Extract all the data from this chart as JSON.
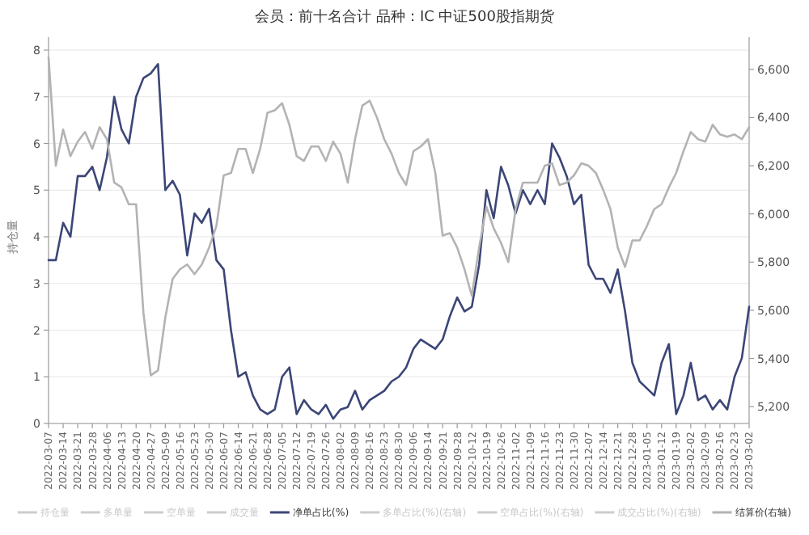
{
  "chart_data": {
    "type": "line",
    "title": "会员：前十名合计 品种：IC 中证500股指期货",
    "ylabel": "持仓量",
    "categories": [
      "2022-03-07",
      null,
      "2022-03-14",
      null,
      "2022-03-21",
      null,
      "2022-03-28",
      null,
      "2022-04-06",
      null,
      "2022-04-13",
      null,
      "2022-04-20",
      null,
      "2022-04-27",
      null,
      "2022-05-09",
      null,
      "2022-05-16",
      null,
      "2022-05-23",
      null,
      "2022-05-30",
      null,
      "2022-06-07",
      null,
      "2022-06-14",
      null,
      "2022-06-21",
      null,
      "2022-06-28",
      null,
      "2022-07-05",
      null,
      "2022-07-12",
      null,
      "2022-07-19",
      null,
      "2022-07-26",
      null,
      "2022-08-02",
      null,
      "2022-08-09",
      null,
      "2022-08-16",
      null,
      "2022-08-23",
      null,
      "2022-08-30",
      null,
      "2022-09-06",
      null,
      "2022-09-14",
      null,
      "2022-09-21",
      null,
      "2022-09-28",
      null,
      "2022-10-12",
      null,
      "2022-10-19",
      null,
      "2022-10-26",
      null,
      "2022-11-02",
      null,
      "2022-11-09",
      null,
      "2022-11-16",
      null,
      "2022-11-23",
      null,
      "2022-11-30",
      null,
      "2022-12-07",
      null,
      "2022-12-14",
      null,
      "2022-12-21",
      null,
      "2022-12-28",
      null,
      "2023-01-05",
      null,
      "2023-01-12",
      null,
      "2023-01-19",
      null,
      "2023-02-02",
      null,
      "2023-02-09",
      null,
      "2023-02-16",
      null,
      "2023-02-23",
      null,
      "2023-03-02"
    ],
    "series": [
      {
        "name": "持仓量",
        "color": "#cccccc",
        "values": [
          null,
          null,
          null,
          null,
          null,
          null,
          null,
          null,
          null,
          null,
          null,
          null,
          null,
          null,
          null,
          null,
          null,
          null,
          null,
          null,
          null,
          null,
          null,
          null,
          null,
          null,
          null,
          null,
          null,
          null,
          null,
          null,
          null,
          null,
          null,
          null,
          null,
          null,
          null,
          null,
          null,
          null,
          null,
          null,
          null,
          null,
          null,
          null,
          null,
          null,
          null,
          null,
          null,
          null,
          null,
          null,
          null,
          null,
          null,
          null,
          null,
          null,
          null,
          null,
          null,
          null,
          null,
          null,
          null,
          null,
          null,
          null,
          null,
          null,
          null,
          null,
          null,
          null,
          null,
          null,
          null,
          null,
          null,
          null,
          null,
          null,
          null,
          null,
          null,
          null,
          null,
          null,
          null,
          null,
          null,
          null,
          null
        ]
      },
      {
        "name": "多单量",
        "color": "#cccccc",
        "values": [
          null,
          null,
          null,
          null,
          null,
          null,
          null,
          null,
          null,
          null,
          null,
          null,
          null,
          null,
          null,
          null,
          null,
          null,
          null,
          null,
          null,
          null,
          null,
          null,
          null,
          null,
          null,
          null,
          null,
          null,
          null,
          null,
          null,
          null,
          null,
          null,
          null,
          null,
          null,
          null,
          null,
          null,
          null,
          null,
          null,
          null,
          null,
          null,
          null,
          null,
          null,
          null,
          null,
          null,
          null,
          null,
          null,
          null,
          null,
          null,
          null,
          null,
          null,
          null,
          null,
          null,
          null,
          null,
          null,
          null,
          null,
          null,
          null,
          null,
          null,
          null,
          null,
          null,
          null,
          null,
          null,
          null,
          null,
          null,
          null,
          null,
          null,
          null,
          null,
          null,
          null,
          null,
          null,
          null,
          null,
          null,
          null
        ]
      },
      {
        "name": "空单量",
        "color": "#cccccc",
        "values": [
          null,
          null,
          null,
          null,
          null,
          null,
          null,
          null,
          null,
          null,
          null,
          null,
          null,
          null,
          null,
          null,
          null,
          null,
          null,
          null,
          null,
          null,
          null,
          null,
          null,
          null,
          null,
          null,
          null,
          null,
          null,
          null,
          null,
          null,
          null,
          null,
          null,
          null,
          null,
          null,
          null,
          null,
          null,
          null,
          null,
          null,
          null,
          null,
          null,
          null,
          null,
          null,
          null,
          null,
          null,
          null,
          null,
          null,
          null,
          null,
          null,
          null,
          null,
          null,
          null,
          null,
          null,
          null,
          null,
          null,
          null,
          null,
          null,
          null,
          null,
          null,
          null,
          null,
          null,
          null,
          null,
          null,
          null,
          null,
          null,
          null,
          null,
          null,
          null,
          null,
          null,
          null,
          null,
          null,
          null,
          null,
          null
        ]
      },
      {
        "name": "成交量",
        "color": "#cccccc",
        "values": [
          null,
          null,
          null,
          null,
          null,
          null,
          null,
          null,
          null,
          null,
          null,
          null,
          null,
          null,
          null,
          null,
          null,
          null,
          null,
          null,
          null,
          null,
          null,
          null,
          null,
          null,
          null,
          null,
          null,
          null,
          null,
          null,
          null,
          null,
          null,
          null,
          null,
          null,
          null,
          null,
          null,
          null,
          null,
          null,
          null,
          null,
          null,
          null,
          null,
          null,
          null,
          null,
          null,
          null,
          null,
          null,
          null,
          null,
          null,
          null,
          null,
          null,
          null,
          null,
          null,
          null,
          null,
          null,
          null,
          null,
          null,
          null,
          null,
          null,
          null,
          null,
          null,
          null,
          null,
          null,
          null,
          null,
          null,
          null,
          null,
          null,
          null,
          null,
          null,
          null,
          null,
          null,
          null,
          null,
          null,
          null,
          null
        ]
      },
      {
        "name": "净单占比(%)",
        "color": "#3b4677",
        "values": [
          3.5,
          3.5,
          4.3,
          4.0,
          5.3,
          5.3,
          5.5,
          5.0,
          5.7,
          7.0,
          6.3,
          6.0,
          7.0,
          7.4,
          7.5,
          7.7,
          5.0,
          5.2,
          4.9,
          3.6,
          4.5,
          4.3,
          4.6,
          3.5,
          3.3,
          2.0,
          1.0,
          1.1,
          0.6,
          0.3,
          0.2,
          0.3,
          1.0,
          1.2,
          0.2,
          0.5,
          0.3,
          0.2,
          0.4,
          0.1,
          0.3,
          0.35,
          0.7,
          0.3,
          0.5,
          0.6,
          0.7,
          0.9,
          1.0,
          1.2,
          1.6,
          1.8,
          1.7,
          1.6,
          1.8,
          2.3,
          2.7,
          2.4,
          2.5,
          3.4,
          5.0,
          4.4,
          5.5,
          5.1,
          4.5,
          5.0,
          4.7,
          5.0,
          4.7,
          6.0,
          5.7,
          5.3,
          4.7,
          4.9,
          3.4,
          3.1,
          3.1,
          2.8,
          3.3,
          2.4,
          1.3,
          0.9,
          0.75,
          0.6,
          1.3,
          1.7,
          0.2,
          0.6,
          1.3,
          0.5,
          0.6,
          0.3,
          0.5,
          0.3,
          1.0,
          1.4,
          2.5
        ]
      },
      {
        "name": "多单占比(%)(右轴)",
        "color": "#cccccc",
        "axis": "y2",
        "values": [
          null,
          null,
          null,
          null,
          null,
          null,
          null,
          null,
          null,
          null,
          null,
          null,
          null,
          null,
          null,
          null,
          null,
          null,
          null,
          null,
          null,
          null,
          null,
          null,
          null,
          null,
          null,
          null,
          null,
          null,
          null,
          null,
          null,
          null,
          null,
          null,
          null,
          null,
          null,
          null,
          null,
          null,
          null,
          null,
          null,
          null,
          null,
          null,
          null,
          null,
          null,
          null,
          null,
          null,
          null,
          null,
          null,
          null,
          null,
          null,
          null,
          null,
          null,
          null,
          null,
          null,
          null,
          null,
          null,
          null,
          null,
          null,
          null,
          null,
          null,
          null,
          null,
          null,
          null,
          null,
          null,
          null,
          null,
          null,
          null,
          null,
          null,
          null,
          null,
          null,
          null,
          null,
          null,
          null,
          null,
          null,
          null
        ]
      },
      {
        "name": "空单占比(%)(右轴)",
        "color": "#cccccc",
        "axis": "y2",
        "values": [
          null,
          null,
          null,
          null,
          null,
          null,
          null,
          null,
          null,
          null,
          null,
          null,
          null,
          null,
          null,
          null,
          null,
          null,
          null,
          null,
          null,
          null,
          null,
          null,
          null,
          null,
          null,
          null,
          null,
          null,
          null,
          null,
          null,
          null,
          null,
          null,
          null,
          null,
          null,
          null,
          null,
          null,
          null,
          null,
          null,
          null,
          null,
          null,
          null,
          null,
          null,
          null,
          null,
          null,
          null,
          null,
          null,
          null,
          null,
          null,
          null,
          null,
          null,
          null,
          null,
          null,
          null,
          null,
          null,
          null,
          null,
          null,
          null,
          null,
          null,
          null,
          null,
          null,
          null,
          null,
          null,
          null,
          null,
          null,
          null,
          null,
          null,
          null,
          null,
          null,
          null,
          null,
          null,
          null,
          null,
          null,
          null
        ]
      },
      {
        "name": "成交占比(%)(右轴)",
        "color": "#cccccc",
        "axis": "y2",
        "values": [
          null,
          null,
          null,
          null,
          null,
          null,
          null,
          null,
          null,
          null,
          null,
          null,
          null,
          null,
          null,
          null,
          null,
          null,
          null,
          null,
          null,
          null,
          null,
          null,
          null,
          null,
          null,
          null,
          null,
          null,
          null,
          null,
          null,
          null,
          null,
          null,
          null,
          null,
          null,
          null,
          null,
          null,
          null,
          null,
          null,
          null,
          null,
          null,
          null,
          null,
          null,
          null,
          null,
          null,
          null,
          null,
          null,
          null,
          null,
          null,
          null,
          null,
          null,
          null,
          null,
          null,
          null,
          null,
          null,
          null,
          null,
          null,
          null,
          null,
          null,
          null,
          null,
          null,
          null,
          null,
          null,
          null,
          null,
          null,
          null,
          null,
          null,
          null,
          null,
          null,
          null,
          null,
          null,
          null,
          null,
          null,
          null
        ]
      },
      {
        "name": "结算价(右轴)",
        "color": "#b3b3b3",
        "axis": "y2",
        "values": [
          6650,
          6200,
          6350,
          6240,
          6300,
          6340,
          6270,
          6360,
          6310,
          6130,
          6110,
          6040,
          6040,
          5590,
          5330,
          5350,
          5570,
          5730,
          5770,
          5790,
          5750,
          5790,
          5860,
          5950,
          6160,
          6170,
          6270,
          6270,
          6170,
          6270,
          6420,
          6430,
          6460,
          6370,
          6240,
          6220,
          6280,
          6280,
          6220,
          6300,
          6250,
          6130,
          6310,
          6450,
          6470,
          6400,
          6310,
          6250,
          6170,
          6120,
          6260,
          6280,
          6310,
          6170,
          5910,
          5920,
          5860,
          5770,
          5660,
          5860,
          6030,
          5940,
          5880,
          5800,
          6020,
          6130,
          6130,
          6130,
          6200,
          6210,
          6120,
          6130,
          6160,
          6210,
          6200,
          6170,
          6100,
          6020,
          5860,
          5780,
          5890,
          5890,
          5950,
          6020,
          6040,
          6110,
          6170,
          6260,
          6340,
          6310,
          6300,
          6370,
          6330,
          6320,
          6330,
          6310,
          6360
        ]
      }
    ],
    "ylim": [
      0,
      8
    ],
    "yticks": [
      0,
      1,
      2,
      3,
      4,
      5,
      6,
      7,
      8
    ],
    "y2lim": [
      5130,
      6680
    ],
    "y2ticks": [
      {
        "value": 5200,
        "label": "5,200"
      },
      {
        "value": 5400,
        "label": "5,400"
      },
      {
        "value": 5600,
        "label": "5,600"
      },
      {
        "value": 5800,
        "label": "5,800"
      },
      {
        "value": 6000,
        "label": "6,000"
      },
      {
        "value": 6200,
        "label": "6,200"
      },
      {
        "value": 6400,
        "label": "6,400"
      },
      {
        "value": 6600,
        "label": "6,600"
      }
    ],
    "grid": "y",
    "legend": "bottom",
    "line_style": "solid",
    "marker": "none"
  }
}
